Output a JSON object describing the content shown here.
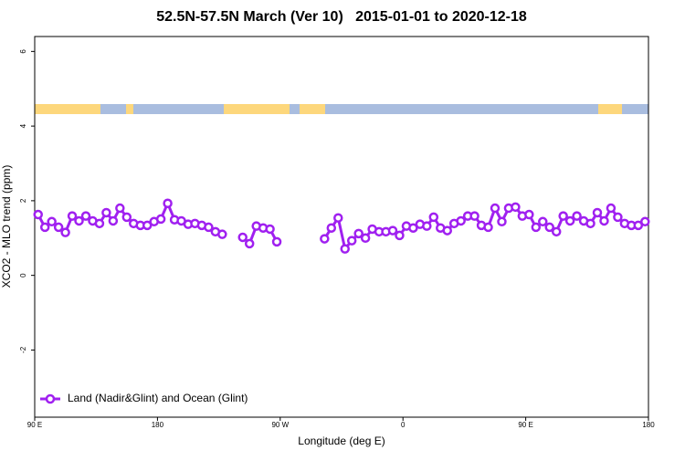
{
  "chart_data": {
    "type": "line",
    "title": "52.5N-57.5N March (Ver 10)   2015-01-01 to 2020-12-18",
    "xlabel": "Longitude (deg E)",
    "ylabel": "XCO2 - MLO trend (ppm)",
    "xlim": [
      90,
      540
    ],
    "xticks": [
      {
        "value": 90,
        "label": "90 E"
      },
      {
        "value": 180,
        "label": "180"
      },
      {
        "value": 270,
        "label": "90 W"
      },
      {
        "value": 360,
        "label": "0"
      },
      {
        "value": 450,
        "label": "90 E"
      },
      {
        "value": 540,
        "label": "180"
      }
    ],
    "ylim": [
      -3.8,
      6.4
    ],
    "yticks": [
      -2,
      0,
      2,
      4,
      6
    ],
    "legend": "bottom-left",
    "series": [
      {
        "name": "Land (Nadir&Glint) and Ocean (Glint)",
        "color": "#a020f0",
        "x": [
          92.5,
          97.5,
          102.5,
          107.5,
          112.5,
          117.5,
          122.5,
          127.5,
          132.5,
          137.5,
          142.5,
          147.5,
          152.5,
          157.5,
          162.5,
          167.5,
          172.5,
          177.5,
          182.5,
          187.5,
          192.5,
          197.5,
          202.5,
          207.5,
          212.5,
          217.5,
          222.5,
          227.5,
          232.5,
          237.5,
          242.5,
          247.5,
          252.5,
          257.5,
          262.5,
          267.5,
          272.5,
          277.5,
          282.5,
          287.5,
          292.5,
          297.5,
          302.5,
          307.5,
          312.5,
          317.5,
          322.5,
          327.5,
          332.5,
          337.5,
          342.5,
          347.5,
          352.5,
          357.5,
          362.5,
          367.5,
          372.5,
          377.5,
          382.5,
          387.5,
          392.5,
          397.5,
          402.5,
          407.5,
          412.5,
          417.5,
          422.5,
          427.5,
          432.5,
          437.5,
          442.5,
          447.5,
          452.5,
          457.5,
          462.5,
          467.5,
          472.5,
          477.5,
          482.5,
          487.5,
          492.5,
          497.5,
          502.5,
          507.5,
          512.5,
          517.5,
          522.5,
          527.5,
          532.5,
          537.5
        ],
        "values": [
          1.63,
          1.29,
          1.44,
          1.29,
          1.15,
          1.59,
          1.46,
          1.59,
          1.46,
          1.39,
          1.68,
          1.46,
          1.8,
          1.56,
          1.39,
          1.34,
          1.34,
          1.44,
          1.51,
          1.93,
          1.49,
          1.46,
          1.37,
          1.39,
          1.34,
          1.29,
          1.17,
          1.1,
          null,
          null,
          1.02,
          0.85,
          1.32,
          1.27,
          1.24,
          0.9,
          null,
          null,
          null,
          null,
          null,
          null,
          0.98,
          1.27,
          1.54,
          0.71,
          0.93,
          1.12,
          1.0,
          1.24,
          1.17,
          1.17,
          1.2,
          1.07,
          1.32,
          1.27,
          1.37,
          1.32,
          1.56,
          1.27,
          1.2,
          1.39,
          1.46,
          1.59,
          1.59,
          1.34,
          1.29,
          1.8,
          1.44,
          1.8,
          1.83,
          1.59,
          1.63,
          1.29,
          1.44,
          1.29,
          1.17,
          1.59,
          1.46,
          1.59,
          1.46,
          1.39,
          1.68,
          1.46,
          1.8,
          1.56,
          1.39,
          1.34,
          1.34,
          1.44
        ]
      }
    ]
  }
}
